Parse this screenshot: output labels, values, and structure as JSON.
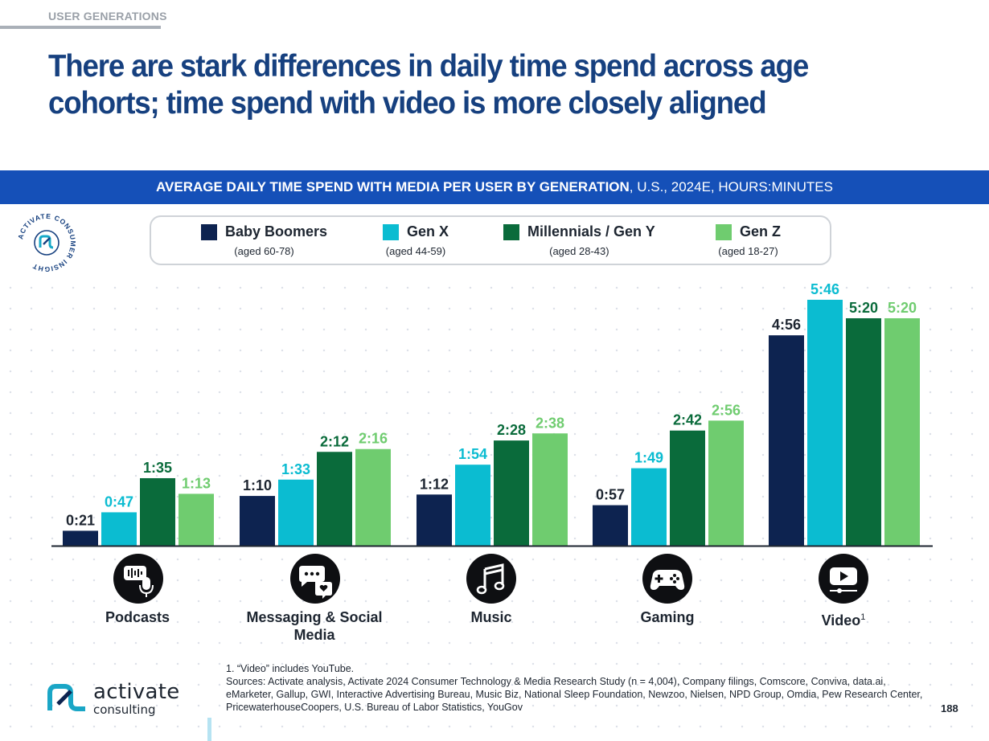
{
  "header": {
    "section_label": "USER GENERATIONS",
    "title": "There are stark differences in daily time spend across age cohorts; time spend with video is more closely aligned"
  },
  "banner": {
    "bold_text": "AVERAGE DAILY TIME SPEND WITH MEDIA PER USER BY GENERATION",
    "rest_text": ", U.S., 2024E, HOURS:MINUTES"
  },
  "badge": {
    "text": "ACTIVATE CONSUMER INSIGHT"
  },
  "legend": [
    {
      "name": "Baby Boomers",
      "age": "(aged 60-78)",
      "color": "#0d2350"
    },
    {
      "name": "Gen X",
      "age": "(aged 44-59)",
      "color": "#0bbcd1"
    },
    {
      "name": "Millennials / Gen Y",
      "age": "(aged 28-43)",
      "color": "#0a6b3b"
    },
    {
      "name": "Gen Z",
      "age": "(aged 18-27)",
      "color": "#6fcc6f"
    }
  ],
  "chart_data": {
    "type": "bar",
    "title": "AVERAGE DAILY TIME SPEND WITH MEDIA PER USER BY GENERATION, U.S., 2024E, HOURS:MINUTES",
    "categories": [
      "Podcasts",
      "Messaging & Social Media",
      "Music",
      "Gaming",
      "Video"
    ],
    "units": "minutes",
    "series": [
      {
        "name": "Baby Boomers",
        "color": "#0d2350",
        "values": [
          21,
          70,
          72,
          57,
          296
        ],
        "labels": [
          "0:21",
          "1:10",
          "1:12",
          "0:57",
          "4:56"
        ]
      },
      {
        "name": "Gen X",
        "color": "#0bbcd1",
        "values": [
          47,
          93,
          114,
          109,
          346
        ],
        "labels": [
          "0:47",
          "1:33",
          "1:54",
          "1:49",
          "5:46"
        ]
      },
      {
        "name": "Millennials / Gen Y",
        "color": "#0a6b3b",
        "values": [
          95,
          132,
          148,
          162,
          320
        ],
        "labels": [
          "1:35",
          "2:12",
          "2:28",
          "2:42",
          "5:20"
        ]
      },
      {
        "name": "Gen Z",
        "color": "#6fcc6f",
        "values": [
          73,
          136,
          158,
          176,
          320
        ],
        "labels": [
          "1:13",
          "2:16",
          "2:38",
          "2:56",
          "5:20"
        ]
      }
    ],
    "ylim": [
      0,
      346
    ],
    "legend_position": "top",
    "grid": false
  },
  "categories_display": [
    {
      "label": "Podcasts",
      "icon": "podcast-mic-icon"
    },
    {
      "label": "Messaging & Social Media",
      "icon": "chat-bubbles-icon"
    },
    {
      "label": "Music",
      "icon": "music-note-icon"
    },
    {
      "label": "Gaming",
      "icon": "gamepad-icon"
    },
    {
      "label": "Video",
      "sup": "1",
      "icon": "video-play-icon"
    }
  ],
  "footnote": {
    "note": "1. “Video” includes YouTube.",
    "sources": "Sources: Activate analysis, Activate 2024 Consumer Technology & Media Research Study (n = 4,004), Company filings, Comscore, Conviva, data.ai, eMarketer, Gallup, GWI, Interactive Advertising Bureau, Music Biz, National Sleep Foundation, Newzoo, Nielsen, NPD Group, Omdia, Pew Research Center, PricewaterhouseCoopers, U.S. Bureau of Labor Statistics, YouGov"
  },
  "logo": {
    "word1": "activate",
    "word2": "consulting"
  },
  "page_number": "188"
}
